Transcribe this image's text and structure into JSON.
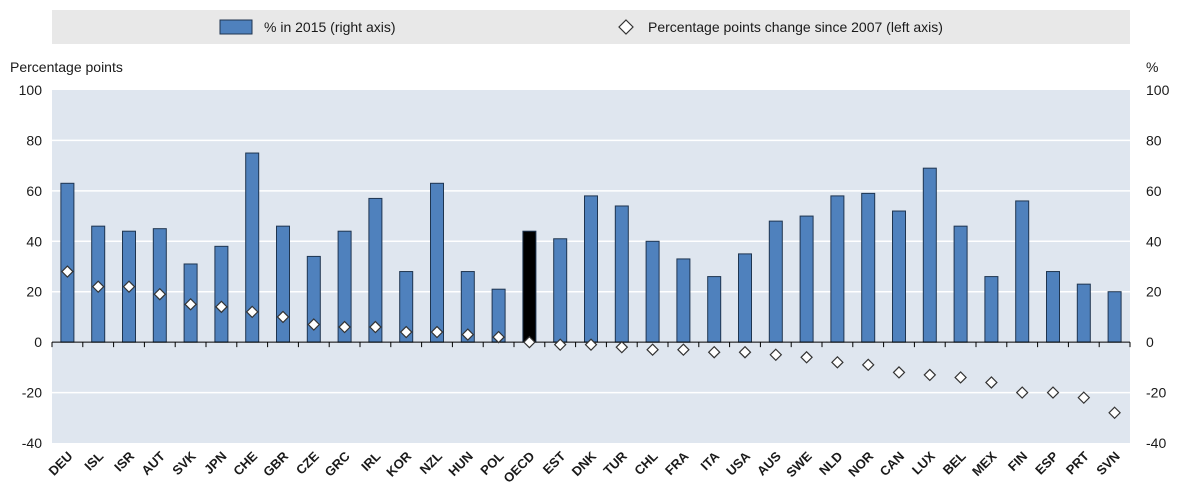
{
  "chart_data": {
    "type": "bar",
    "legend": [
      {
        "label": "% in 2015 (right axis)",
        "marker": "bar",
        "color": "#4f81bd"
      },
      {
        "label": "Percentage points change since 2007 (left axis)",
        "marker": "diamond",
        "color": "#ffffff"
      }
    ],
    "ylabel_left": "Percentage points",
    "ylabel_right": "%",
    "ylim": [
      -40,
      100
    ],
    "yticks": [
      -40,
      -20,
      0,
      20,
      40,
      60,
      80,
      100
    ],
    "highlight_category": "OECD",
    "highlight_color": "#000000",
    "bar_color": "#4f81bd",
    "categories": [
      "DEU",
      "ISL",
      "ISR",
      "AUT",
      "SVK",
      "JPN",
      "CHE",
      "GBR",
      "CZE",
      "GRC",
      "IRL",
      "KOR",
      "NZL",
      "HUN",
      "POL",
      "OECD",
      "EST",
      "DNK",
      "TUR",
      "CHL",
      "FRA",
      "ITA",
      "USA",
      "AUS",
      "SWE",
      "NLD",
      "NOR",
      "CAN",
      "LUX",
      "BEL",
      "MEX",
      "FIN",
      "ESP",
      "PRT",
      "SVN"
    ],
    "series": [
      {
        "name": "% in 2015 (right axis)",
        "type": "bar",
        "axis": "right",
        "values": [
          63,
          46,
          44,
          45,
          31,
          38,
          75,
          46,
          34,
          44,
          57,
          28,
          63,
          28,
          21,
          44,
          41,
          58,
          54,
          40,
          33,
          26,
          35,
          48,
          50,
          58,
          59,
          52,
          69,
          46,
          26,
          56,
          28,
          23,
          20
        ]
      },
      {
        "name": "Percentage points change since 2007 (left axis)",
        "type": "scatter",
        "axis": "left",
        "values": [
          28,
          22,
          22,
          19,
          15,
          14,
          12,
          10,
          7,
          6,
          6,
          4,
          4,
          3,
          2,
          0,
          -1,
          -1,
          -2,
          -3,
          -3,
          -4,
          -4,
          -5,
          -6,
          -8,
          -9,
          -12,
          -13,
          -14,
          -16,
          -20,
          -20,
          -22,
          -28
        ]
      }
    ]
  }
}
